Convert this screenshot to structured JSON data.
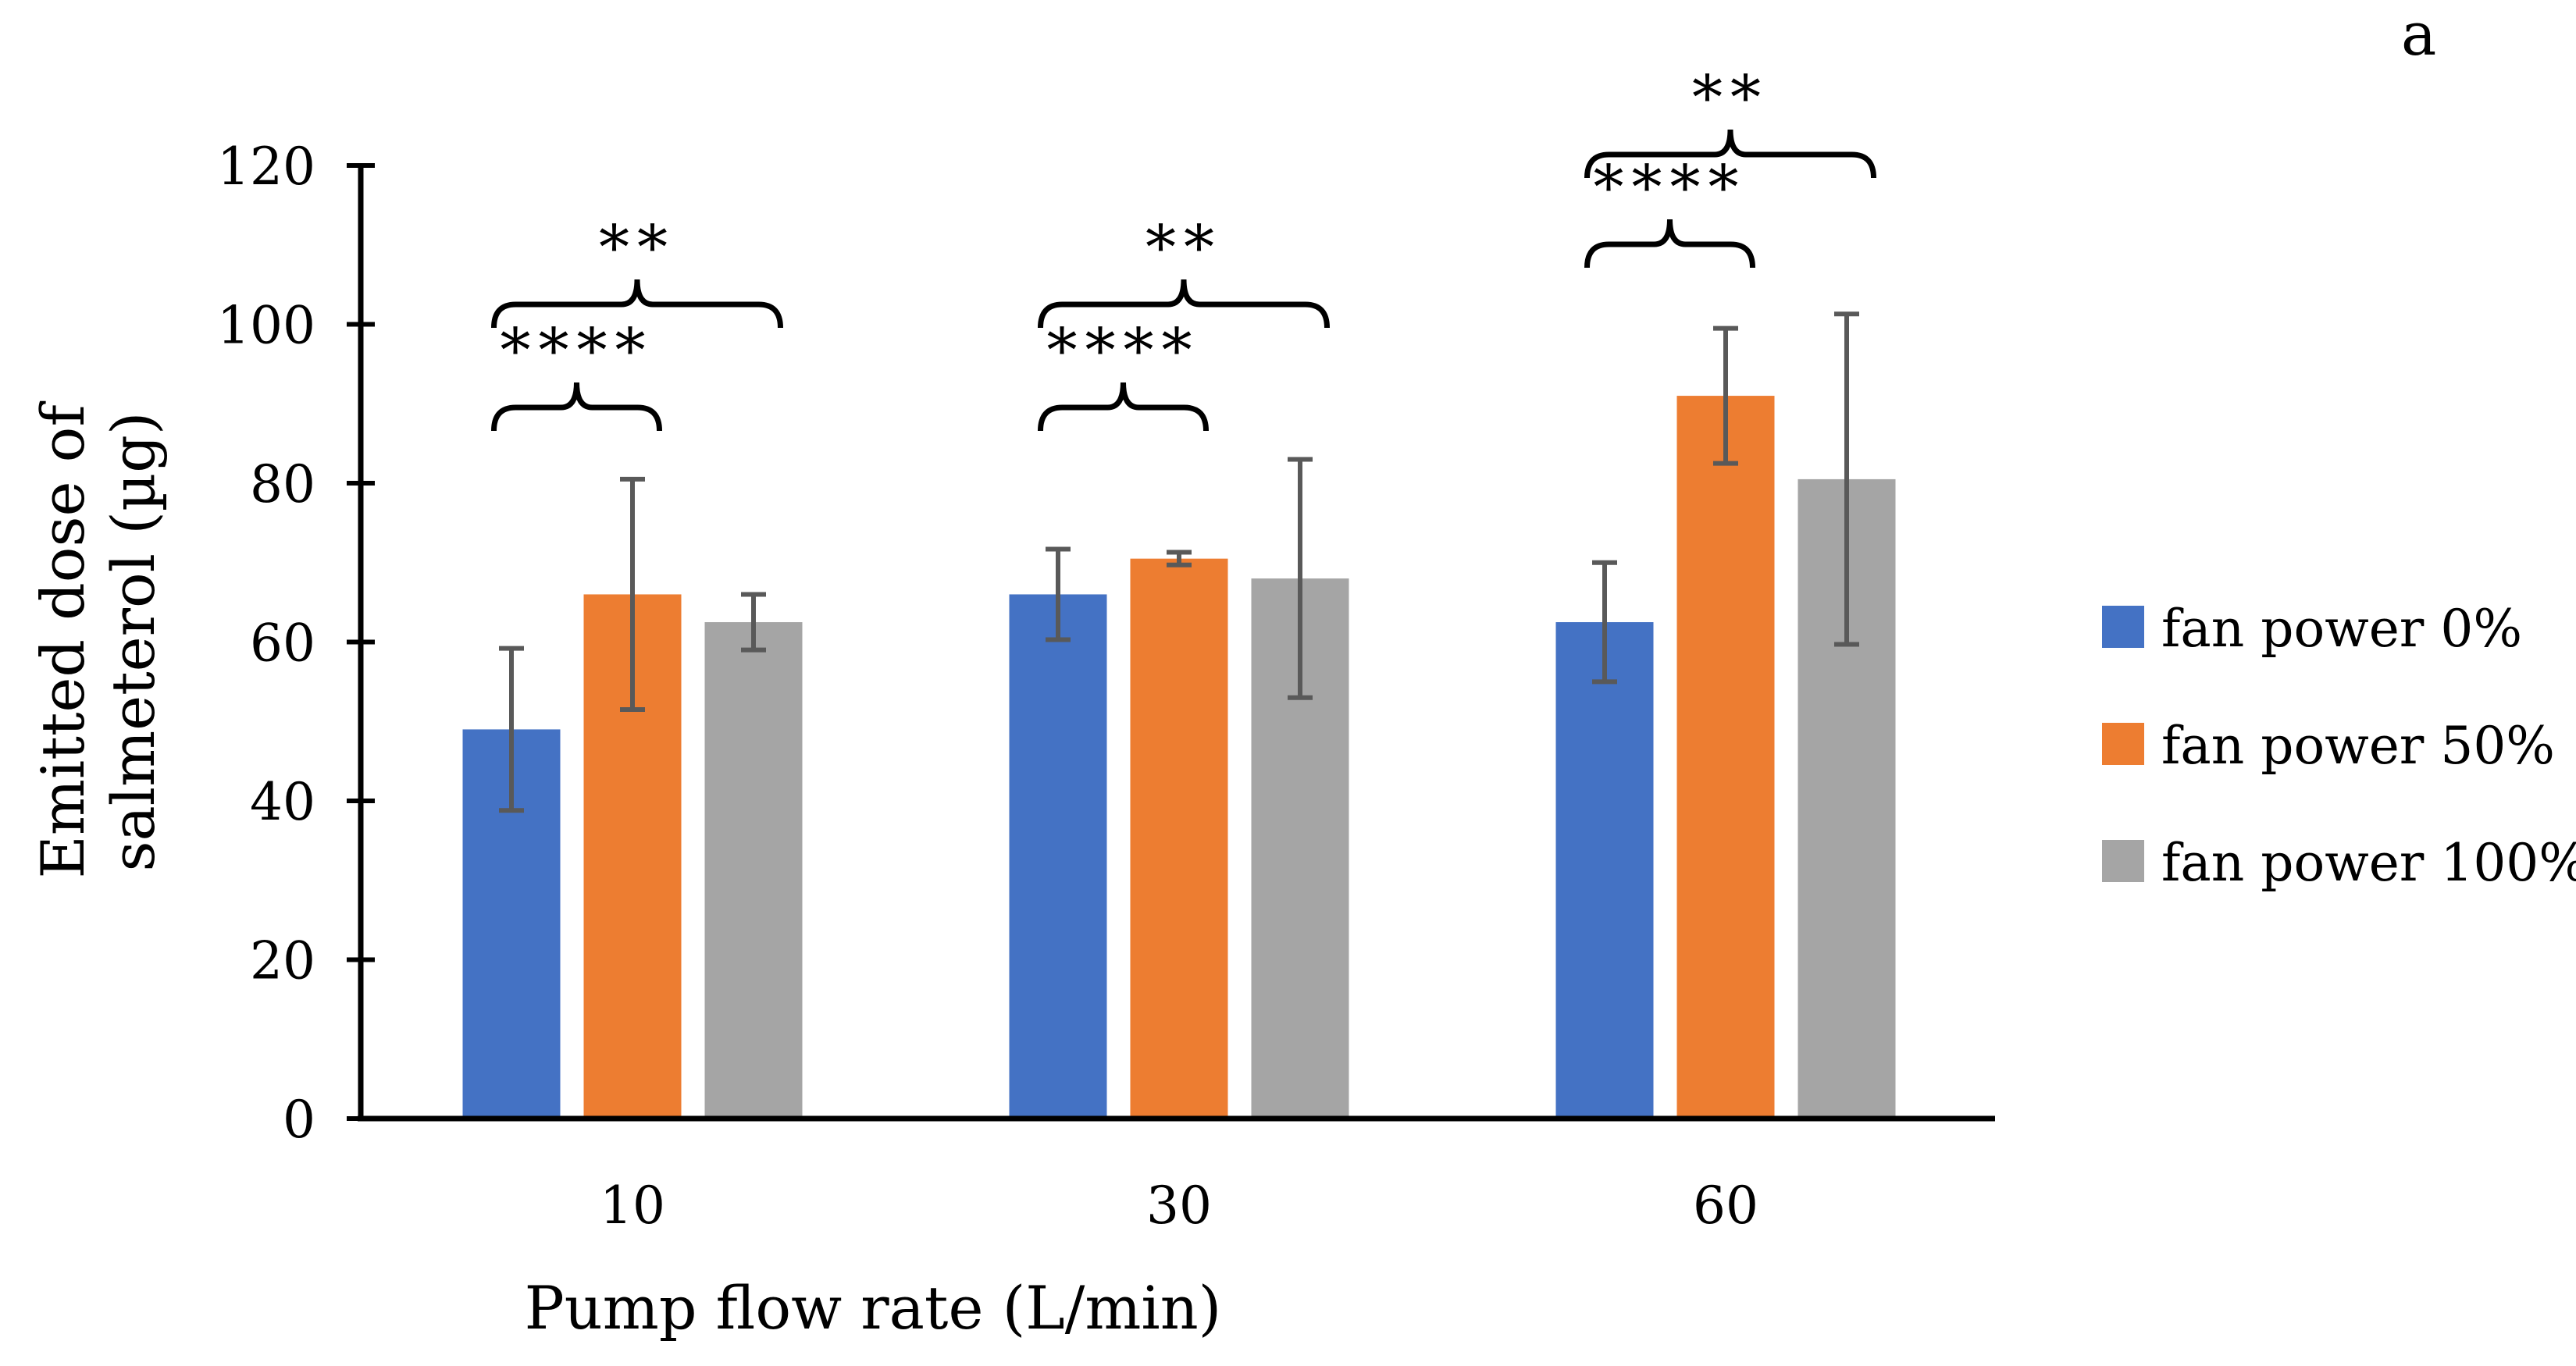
{
  "panel_label": "a",
  "chart_data": {
    "type": "bar",
    "categories": [
      "10",
      "30",
      "60"
    ],
    "series": [
      {
        "name": "fan power 0%",
        "color": "#4472C4",
        "values": [
          49,
          66,
          62.5
        ],
        "errors": [
          10.2,
          5.7,
          7.5
        ]
      },
      {
        "name": "fan power 50%",
        "color": "#ED7D31",
        "values": [
          66,
          70.5,
          91
        ],
        "errors": [
          14.5,
          0.8,
          8.5
        ]
      },
      {
        "name": "fan power 100%",
        "color": "#A5A5A5",
        "values": [
          62.5,
          68,
          80.5
        ],
        "errors": [
          3.5,
          15,
          20.8
        ]
      }
    ],
    "xlabel": "Pump flow rate (L/min)",
    "ylabel_lines": [
      "Emitted dose of",
      "salmeterol (µg)"
    ],
    "ylim": [
      0,
      120
    ],
    "yticks": [
      0,
      20,
      40,
      60,
      80,
      100,
      120
    ],
    "legend_position": "right",
    "significance": [
      {
        "category": "10",
        "from_series": 0,
        "to_series": 1,
        "label": "****",
        "level": 1
      },
      {
        "category": "10",
        "from_series": 0,
        "to_series": 2,
        "label": "**",
        "level": 2
      },
      {
        "category": "30",
        "from_series": 0,
        "to_series": 1,
        "label": "****",
        "level": 1
      },
      {
        "category": "30",
        "from_series": 0,
        "to_series": 2,
        "label": "**",
        "level": 2
      },
      {
        "category": "60",
        "from_series": 0,
        "to_series": 1,
        "label": "****",
        "level": 1
      },
      {
        "category": "60",
        "from_series": 0,
        "to_series": 2,
        "label": "**",
        "level": 2
      }
    ]
  }
}
